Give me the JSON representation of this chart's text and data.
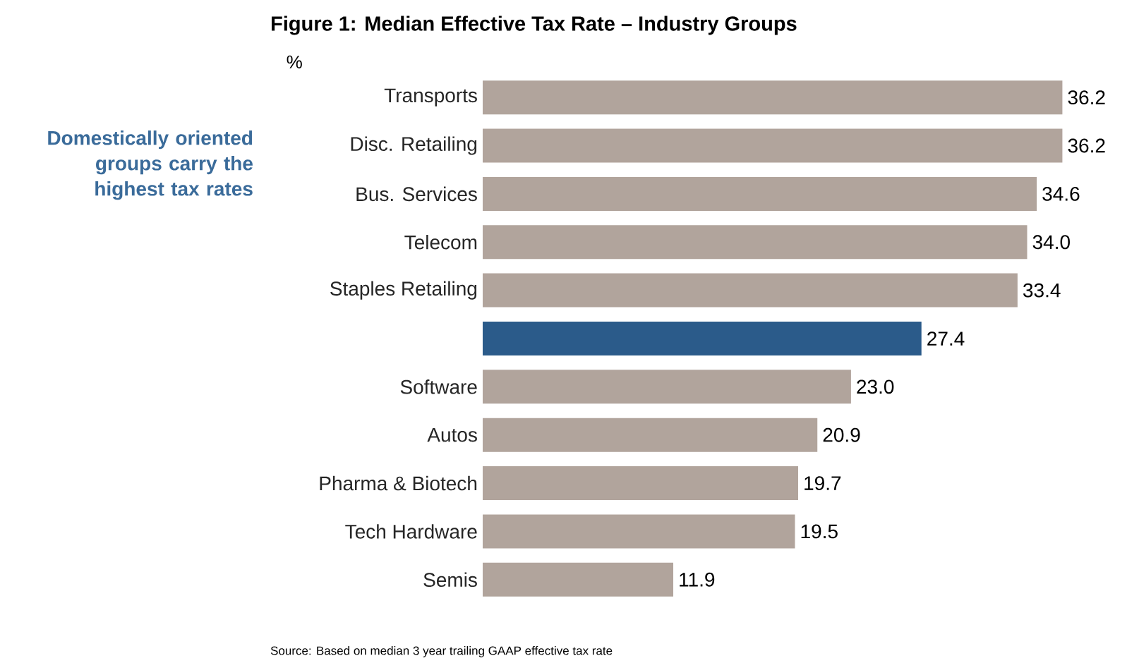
{
  "chart_data": {
    "type": "bar",
    "orientation": "horizontal",
    "title": "Figure 1: Median Effective Tax Rate – Industry Groups",
    "ylabel": "%",
    "categories": [
      "Transports",
      "Disc. Retailing",
      "Bus. Services",
      "Telecom",
      "Staples Retailing",
      null,
      "Software",
      "Autos",
      "Pharma & Biotech",
      "Tech Hardware",
      "Semis"
    ],
    "values": [
      36.2,
      36.2,
      34.6,
      34.0,
      33.4,
      27.4,
      23.0,
      20.9,
      19.7,
      19.5,
      11.9
    ],
    "value_labels": [
      "36.2",
      "36.2",
      "34.6",
      "34.0",
      "33.4",
      "27.4",
      "23.0",
      "20.9",
      "19.7",
      "19.5",
      "11.9"
    ],
    "colors": [
      "#b1a49c",
      "#b1a49c",
      "#b1a49c",
      "#b1a49c",
      "#b1a49c",
      "#2b5b8a",
      "#b1a49c",
      "#b1a49c",
      "#b1a49c",
      "#b1a49c",
      "#b1a49c"
    ],
    "annotations": [
      "Domestically oriented groups carry the highest tax rates",
      "Source: Based on median 3 year trailing GAAP effective tax rate"
    ]
  }
}
